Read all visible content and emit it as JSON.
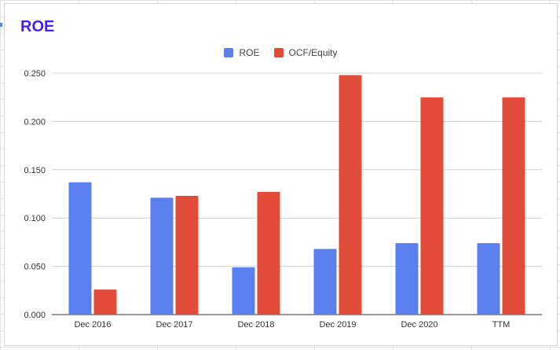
{
  "chart_data": {
    "type": "bar",
    "title": "ROE",
    "xlabel": "",
    "ylabel": "",
    "categories": [
      "Dec 2016",
      "Dec 2017",
      "Dec 2018",
      "Dec 2019",
      "Dec 2020",
      "TTM"
    ],
    "series": [
      {
        "name": "ROE",
        "color": "#5b7fef",
        "values": [
          0.137,
          0.121,
          0.049,
          0.068,
          0.074,
          0.074
        ]
      },
      {
        "name": "OCF/Equity",
        "color": "#e34c3a",
        "values": [
          0.026,
          0.123,
          0.127,
          0.248,
          0.225,
          0.225
        ]
      }
    ],
    "yticks": [
      "0.000",
      "0.050",
      "0.100",
      "0.150",
      "0.200",
      "0.250"
    ],
    "ylim": [
      0,
      0.25
    ],
    "grid": true,
    "legend_position": "top-center"
  },
  "colors": {
    "title": "#4a1ee8",
    "gridline": "#d0d0d0",
    "axis": "#333333"
  }
}
